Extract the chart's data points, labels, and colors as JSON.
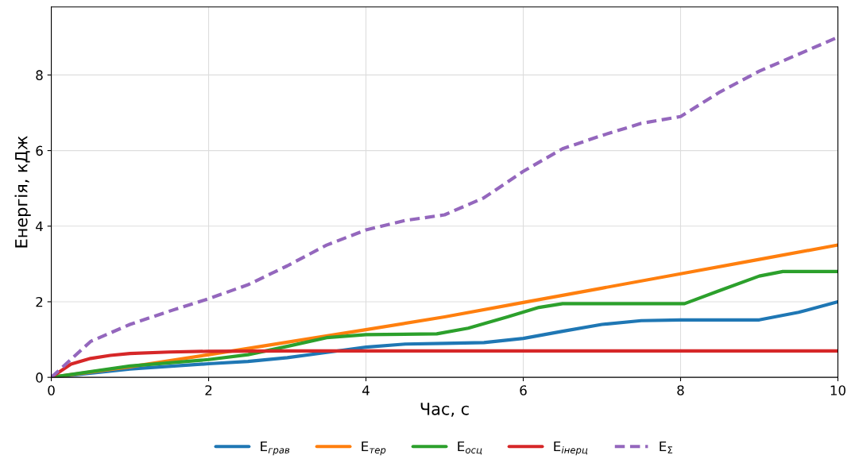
{
  "chart_data": {
    "type": "line",
    "xlabel": "Час, с",
    "ylabel": "Енергія, кДж",
    "xlim": [
      0,
      10
    ],
    "xticks": [
      0,
      2,
      4,
      6,
      8,
      10
    ],
    "ylim": [
      0,
      9.8
    ],
    "yticks": [
      0,
      2,
      4,
      6,
      8
    ],
    "grid": true,
    "legend": "bottom",
    "series": [
      {
        "name": "E$_{грав}$",
        "color": "#1f77b4",
        "x": [
          0,
          1,
          2,
          2.5,
          3,
          3.5,
          4,
          4.5,
          5,
          5.5,
          6,
          6.5,
          7,
          7.5,
          8,
          9,
          9.5,
          10
        ],
        "values": [
          0,
          0.22,
          0.36,
          0.42,
          0.52,
          0.66,
          0.8,
          0.88,
          0.9,
          0.92,
          1.03,
          1.22,
          1.4,
          1.5,
          1.52,
          1.52,
          1.72,
          2.0
        ]
      },
      {
        "name": "E$_{тер}$",
        "color": "#ff7f0e",
        "x": [
          0,
          1,
          2,
          3,
          4,
          5,
          6,
          7,
          8,
          9,
          10
        ],
        "values": [
          0,
          0.28,
          0.6,
          0.93,
          1.26,
          1.6,
          1.98,
          2.36,
          2.74,
          3.12,
          3.5
        ]
      },
      {
        "name": "E$_{осц}$",
        "color": "#2ca02c",
        "x": [
          0,
          1,
          2,
          2.5,
          3,
          3.5,
          4,
          4.9,
          5.3,
          5.8,
          6.2,
          6.5,
          8.05,
          8.5,
          9,
          9.3,
          10
        ],
        "values": [
          0,
          0.3,
          0.47,
          0.6,
          0.82,
          1.05,
          1.13,
          1.15,
          1.3,
          1.6,
          1.85,
          1.95,
          1.95,
          2.3,
          2.68,
          2.8,
          2.8
        ]
      },
      {
        "name": "E$_{інерц}$",
        "color": "#d62728",
        "x": [
          0,
          0.25,
          0.5,
          0.75,
          1,
          1.5,
          2,
          3,
          10
        ],
        "values": [
          0,
          0.35,
          0.5,
          0.58,
          0.63,
          0.67,
          0.69,
          0.7,
          0.7
        ]
      },
      {
        "name": "E$_{Σ}$",
        "color": "#9467bd",
        "line_style": "dashed",
        "x": [
          0,
          0.5,
          1,
          1.5,
          2,
          2.5,
          3,
          3.5,
          4,
          4.5,
          5,
          5.5,
          6,
          6.5,
          7,
          7.5,
          8,
          8.5,
          9,
          9.5,
          10
        ],
        "values": [
          0,
          0.95,
          1.4,
          1.75,
          2.08,
          2.45,
          2.95,
          3.5,
          3.9,
          4.15,
          4.3,
          4.75,
          5.45,
          6.05,
          6.4,
          6.72,
          6.9,
          7.55,
          8.1,
          8.55,
          9.0
        ]
      }
    ]
  }
}
